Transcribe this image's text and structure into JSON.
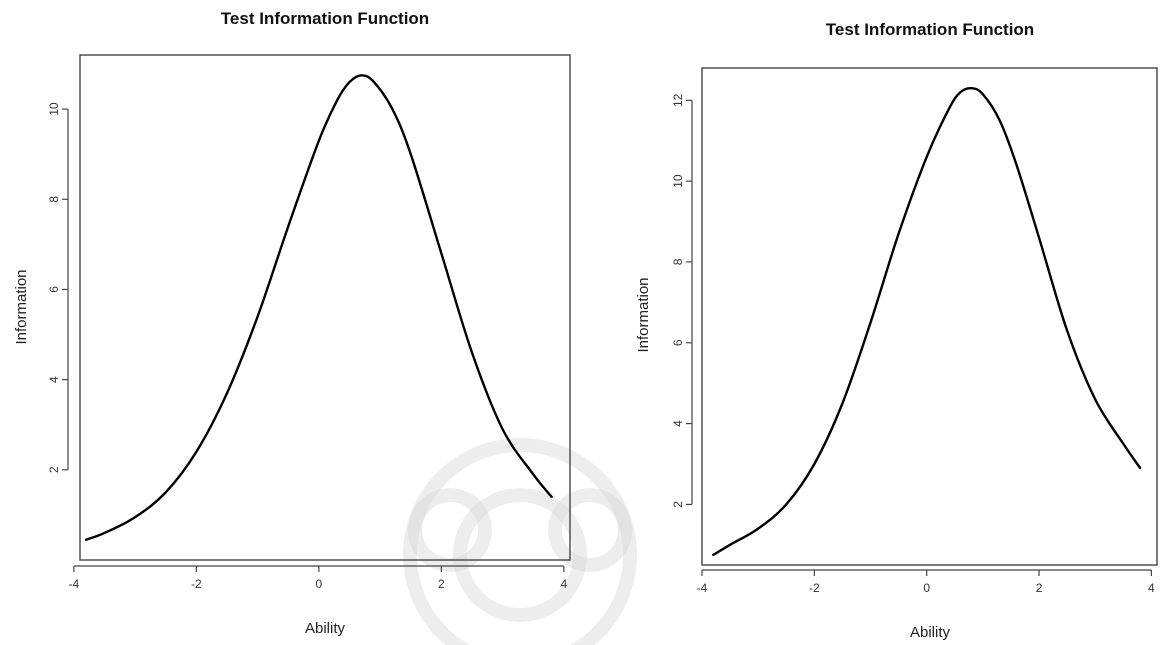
{
  "chart_data": [
    {
      "type": "line",
      "title": "Test Information Function",
      "xlabel": "Ability",
      "ylabel": "Information",
      "xlim": [
        -3.9,
        4.1
      ],
      "ylim": [
        0,
        11.2
      ],
      "xticks": [
        -4,
        -2,
        0,
        2,
        4
      ],
      "yticks": [
        2,
        4,
        6,
        8,
        10
      ],
      "grid": false,
      "legend": "none",
      "series": [
        {
          "x": [
            -3.8,
            -3.5,
            -3.0,
            -2.5,
            -2.0,
            -1.5,
            -1.0,
            -0.5,
            0.0,
            0.3,
            0.5,
            0.7,
            0.9,
            1.2,
            1.5,
            2.0,
            2.5,
            3.0,
            3.5,
            3.8
          ],
          "values": [
            0.45,
            0.6,
            0.95,
            1.5,
            2.4,
            3.7,
            5.4,
            7.4,
            9.3,
            10.2,
            10.6,
            10.75,
            10.6,
            10.0,
            9.0,
            6.8,
            4.6,
            2.9,
            1.9,
            1.4
          ]
        }
      ],
      "line_color": "#000000"
    },
    {
      "type": "line",
      "title": "Test Information Function",
      "xlabel": "Ability",
      "ylabel": "Information",
      "xlim": [
        -4.0,
        4.1
      ],
      "ylim": [
        0.5,
        12.8
      ],
      "xticks": [
        -4,
        -2,
        0,
        2,
        4
      ],
      "yticks": [
        2,
        4,
        6,
        8,
        10,
        12
      ],
      "grid": false,
      "legend": "none",
      "series": [
        {
          "x": [
            -3.8,
            -3.5,
            -3.0,
            -2.5,
            -2.0,
            -1.5,
            -1.0,
            -0.5,
            0.0,
            0.4,
            0.6,
            0.8,
            1.0,
            1.3,
            1.6,
            2.0,
            2.5,
            3.0,
            3.5,
            3.8
          ],
          "values": [
            0.75,
            1.0,
            1.4,
            2.0,
            3.0,
            4.5,
            6.5,
            8.7,
            10.6,
            11.8,
            12.2,
            12.3,
            12.15,
            11.5,
            10.4,
            8.6,
            6.3,
            4.6,
            3.5,
            2.9
          ]
        }
      ],
      "line_color": "#000000"
    }
  ]
}
